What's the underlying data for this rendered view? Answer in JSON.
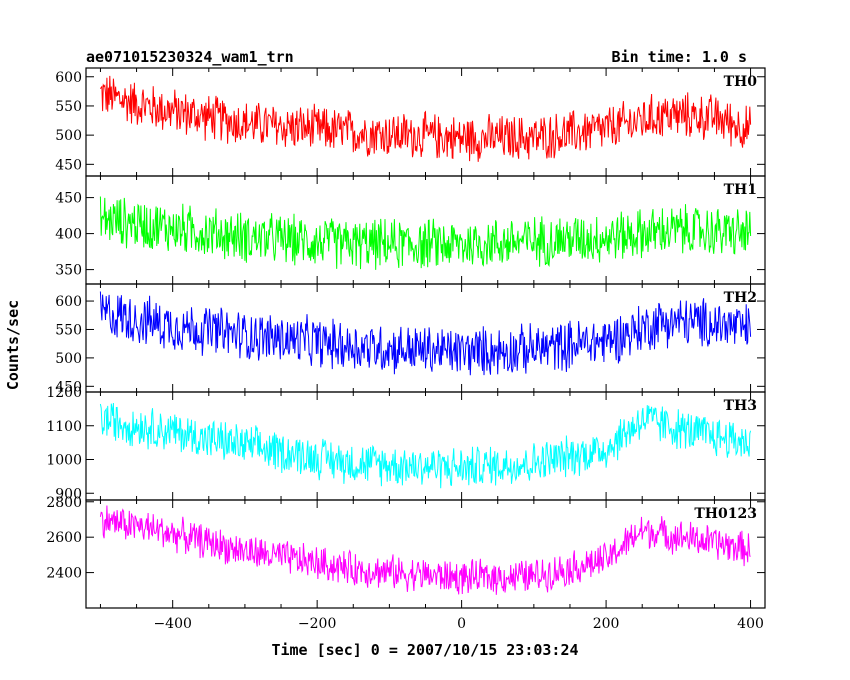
{
  "header": {
    "title": "ae071015230324_wam1_trn",
    "bin_time": "Bin time: 1.0 s"
  },
  "chart_data": {
    "type": "line",
    "xlabel": "Time [sec] 0 = 2007/10/15 23:03:24",
    "ylabel": "Counts/sec",
    "xlim": [
      -520,
      420
    ],
    "x_ticks": [
      -400,
      -200,
      0,
      200,
      400
    ],
    "x_tick_labels": [
      "−400",
      "−200",
      "0",
      "200",
      "400"
    ],
    "x_range_data": [
      -500,
      400
    ],
    "grid": false,
    "panels": [
      {
        "name": "TH0",
        "color": "#ff0000",
        "ylim": [
          430,
          615
        ],
        "y_ticks": [
          450,
          500,
          550,
          600
        ],
        "profile": [
          [
            -500,
            570
          ],
          [
            -420,
            545
          ],
          [
            -300,
            520
          ],
          [
            -150,
            505
          ],
          [
            0,
            495
          ],
          [
            100,
            495
          ],
          [
            200,
            510
          ],
          [
            280,
            535
          ],
          [
            350,
            530
          ],
          [
            400,
            510
          ]
        ],
        "noise_half_range": 45
      },
      {
        "name": "TH1",
        "color": "#00ff00",
        "ylim": [
          330,
          480
        ],
        "y_ticks": [
          350,
          400,
          450
        ],
        "profile": [
          [
            -500,
            420
          ],
          [
            -420,
            410
          ],
          [
            -300,
            395
          ],
          [
            -150,
            385
          ],
          [
            0,
            385
          ],
          [
            100,
            390
          ],
          [
            200,
            395
          ],
          [
            300,
            405
          ],
          [
            400,
            400
          ]
        ],
        "noise_half_range": 40
      },
      {
        "name": "TH2",
        "color": "#0000ff",
        "ylim": [
          440,
          630
        ],
        "y_ticks": [
          450,
          500,
          550,
          600
        ],
        "profile": [
          [
            -500,
            580
          ],
          [
            -420,
            560
          ],
          [
            -300,
            540
          ],
          [
            -150,
            520
          ],
          [
            0,
            510
          ],
          [
            100,
            515
          ],
          [
            200,
            530
          ],
          [
            280,
            565
          ],
          [
            350,
            560
          ],
          [
            400,
            550
          ]
        ],
        "noise_half_range": 50
      },
      {
        "name": "TH3",
        "color": "#00ffff",
        "ylim": [
          880,
          1200
        ],
        "y_ticks": [
          900,
          1000,
          1100,
          1200
        ],
        "profile": [
          [
            -500,
            1120
          ],
          [
            -420,
            1090
          ],
          [
            -300,
            1040
          ],
          [
            -150,
            990
          ],
          [
            0,
            975
          ],
          [
            100,
            990
          ],
          [
            200,
            1030
          ],
          [
            250,
            1120
          ],
          [
            320,
            1080
          ],
          [
            400,
            1050
          ]
        ],
        "noise_half_range": 70
      },
      {
        "name": "TH0123",
        "color": "#ff00ff",
        "ylim": [
          2200,
          2810
        ],
        "y_ticks": [
          2400,
          2600,
          2800
        ],
        "profile": [
          [
            -500,
            2700
          ],
          [
            -420,
            2640
          ],
          [
            -300,
            2520
          ],
          [
            -150,
            2420
          ],
          [
            0,
            2370
          ],
          [
            100,
            2380
          ],
          [
            200,
            2470
          ],
          [
            250,
            2640
          ],
          [
            320,
            2590
          ],
          [
            400,
            2530
          ]
        ],
        "noise_half_range": 110
      }
    ]
  }
}
